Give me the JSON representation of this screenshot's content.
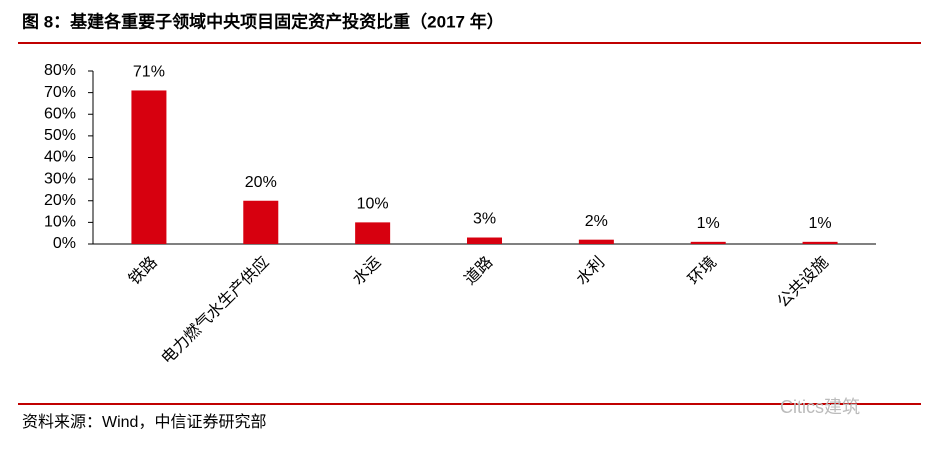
{
  "header": {
    "title": "图 8：基建各重要子领域中央项目固定资产投资比重（2017 年）"
  },
  "chart_data": {
    "type": "bar",
    "categories": [
      "铁路",
      "电力燃气水生产供应",
      "水运",
      "道路",
      "水利",
      "环境",
      "公共设施"
    ],
    "values": [
      71,
      20,
      10,
      3,
      2,
      1,
      1
    ],
    "value_labels": [
      "71%",
      "20%",
      "10%",
      "3%",
      "2%",
      "1%",
      "1%"
    ],
    "color": "#d7000f",
    "ylim": [
      0,
      80
    ],
    "yticks": [
      {
        "value": 0,
        "label": "0%"
      },
      {
        "value": 10,
        "label": "10%"
      },
      {
        "value": 20,
        "label": "20%"
      },
      {
        "value": 30,
        "label": "30%"
      },
      {
        "value": 40,
        "label": "40%"
      },
      {
        "value": 50,
        "label": "50%"
      },
      {
        "value": 60,
        "label": "60%"
      },
      {
        "value": 70,
        "label": "70%"
      },
      {
        "value": 80,
        "label": "80%"
      }
    ],
    "grid": false
  },
  "footer": {
    "source": "资料来源：Wind，中信证券研究部",
    "watermark": "Citics建筑"
  }
}
